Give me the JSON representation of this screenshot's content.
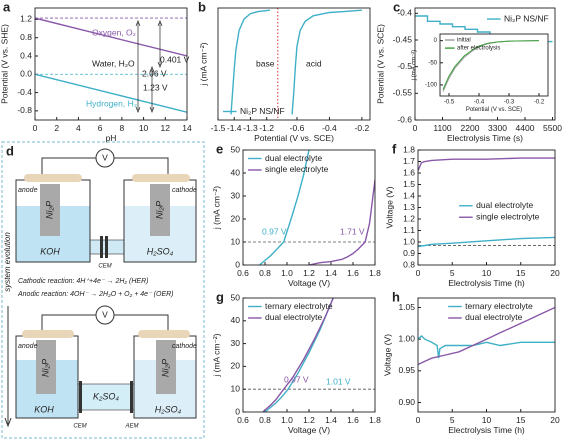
{
  "chart_data": [
    {
      "type": "line",
      "panel": "a",
      "xlabel": "pH",
      "ylabel": "Potential (V vs. SHE)",
      "xlim": [
        0,
        14
      ],
      "ylim": [
        -1.0,
        1.45
      ],
      "xticks": [
        0,
        2,
        4,
        6,
        8,
        10,
        12,
        14
      ],
      "yticks": [
        -0.8,
        -0.4,
        {
          "value": 0,
          "label": "0.0"
        },
        0.4,
        0.8,
        1.2
      ],
      "legend": null,
      "series": [
        {
          "name": "Oxygen, O₂",
          "color": "#8a58a8",
          "x": [
            0,
            14
          ],
          "values": [
            1.23,
            0.4
          ]
        },
        {
          "name": "Hydrogen, H₂",
          "color": "#3fb0c8",
          "x": [
            0,
            14
          ],
          "values": [
            0,
            -0.83
          ]
        }
      ],
      "ref_lines": [
        {
          "value": 1.23,
          "color": "#8a58a8"
        },
        {
          "value": 0,
          "color": "#3fb0c8"
        }
      ],
      "annotations": [
        "Water, H₂O",
        "2.06 V",
        "0.401 V",
        "1.23 V"
      ]
    },
    {
      "type": "line",
      "panel": "b",
      "xlabel": "Potential (V vs. SCE)",
      "ylabel": "j (mA cm⁻²)",
      "xlim": [
        -1.5,
        -0.15
      ],
      "x_break": [
        -1.15,
        -0.7
      ],
      "ylim": [
        -100,
        0
      ],
      "xticks": [
        -1.5,
        -1.4,
        -1.3,
        -1.2,
        -0.6,
        -0.4,
        -0.2
      ],
      "yticks": [],
      "legend": "lower-left",
      "series": [
        {
          "name": "Ni₂P NS/NF",
          "color": "#3fb0c8",
          "x": [
            -1.42,
            -1.41,
            -1.4,
            -1.39,
            -1.37,
            -1.34,
            -1.3,
            -1.25,
            -1.18,
            null,
            -0.63,
            -0.62,
            -0.61,
            -0.6,
            -0.58,
            -0.55,
            -0.5,
            -0.4,
            -0.3,
            -0.2
          ],
          "values": [
            -95,
            -75,
            -55,
            -38,
            -20,
            -10,
            -5,
            -3,
            -2,
            null,
            -95,
            -75,
            -52,
            -34,
            -20,
            -12,
            -7,
            -4,
            -3,
            -2
          ]
        }
      ],
      "ref_lines": [],
      "annotations": [
        "base",
        "acid"
      ]
    },
    {
      "type": "line",
      "panel": "c",
      "xlabel": "Electrolysis Time (s)",
      "ylabel": "Potential (V vs. SCE)",
      "xlim": [
        0,
        5600
      ],
      "ylim": [
        -0.6,
        -0.39
      ],
      "xticks": [
        0,
        1100,
        2200,
        3300,
        4400,
        5500
      ],
      "yticks": [
        -0.4,
        -0.45,
        -0.5,
        -0.55,
        -0.6
      ],
      "legend": "upper-right",
      "series": [
        {
          "name": "Ni₂P NS/NF",
          "color": "#3fb0c8",
          "x": [
            0,
            500,
            500,
            1000,
            1000,
            1500,
            1500,
            2000,
            2000,
            2500,
            2500,
            3000,
            3000,
            3500,
            3500,
            4000,
            4000,
            4500,
            4500,
            5000,
            5000,
            5500
          ],
          "values": [
            -0.405,
            -0.405,
            -0.415,
            -0.415,
            -0.42,
            -0.42,
            -0.425,
            -0.425,
            -0.43,
            -0.43,
            -0.435,
            -0.435,
            -0.44,
            -0.44,
            -0.443,
            -0.443,
            -0.446,
            -0.446,
            -0.45,
            -0.45,
            -0.453,
            -0.453
          ]
        }
      ],
      "ref_lines": [],
      "annotations": []
    },
    {
      "type": "line",
      "xlabel": "Potential (V vs. SCE)",
      "ylabel": "j (mA cm⁻²)",
      "xlim": [
        -0.53,
        -0.17
      ],
      "ylim": [
        -125,
        15
      ],
      "xticks": [
        -0.5,
        -0.4,
        -0.3,
        -0.2
      ],
      "yticks": [
        -100,
        -50,
        0
      ],
      "legend": "upper-left",
      "series": [
        {
          "name": "initial",
          "color": "#9a9a9a",
          "x": [
            -0.52,
            -0.5,
            -0.48,
            -0.45,
            -0.42,
            -0.4,
            -0.37,
            -0.34,
            -0.3,
            -0.25,
            -0.2
          ],
          "values": [
            -115,
            -85,
            -62,
            -38,
            -22,
            -14,
            -7,
            -3,
            -1,
            -0.5,
            0
          ]
        },
        {
          "name": "after electrolysis",
          "color": "#3ca03c",
          "x": [
            -0.52,
            -0.5,
            -0.48,
            -0.45,
            -0.42,
            -0.4,
            -0.37,
            -0.34,
            -0.3,
            -0.25,
            -0.2
          ],
          "values": [
            -110,
            -80,
            -58,
            -35,
            -20,
            -12,
            -6,
            -3,
            -1,
            -0.5,
            0
          ]
        }
      ],
      "ref_lines": [],
      "annotations": []
    },
    {
      "type": "line",
      "panel": "e",
      "xlabel": "Voltage (V)",
      "ylabel": "j (mA cm⁻²)",
      "xlim": [
        0.6,
        1.8
      ],
      "ylim": [
        0,
        50
      ],
      "xticks": [
        0.6,
        0.8,
        {
          "value": 1,
          "label": "1.0"
        },
        1.2,
        1.4,
        1.6,
        1.8
      ],
      "yticks": [
        0,
        10,
        20,
        30,
        40,
        50
      ],
      "legend": "upper-left",
      "series": [
        {
          "name": "dual electrolyte",
          "color": "#3fb0c8",
          "x": [
            0.75,
            0.8,
            0.85,
            0.9,
            0.97,
            1.05,
            1.1,
            1.15,
            1.2
          ],
          "values": [
            0,
            2,
            4,
            6.5,
            10,
            22,
            30,
            39,
            50
          ]
        },
        {
          "name": "single electrolyte",
          "color": "#8a58a8",
          "x": [
            1.2,
            1.3,
            1.4,
            1.5,
            1.55,
            1.6,
            1.65,
            1.71,
            1.75,
            1.8
          ],
          "values": [
            0,
            1,
            1.5,
            2.5,
            3.5,
            5,
            7,
            10,
            18,
            37
          ]
        }
      ],
      "ref_lines": [
        {
          "value": 10,
          "color": "#555555"
        }
      ],
      "annotations": [
        "0.97 V",
        "1.71 V"
      ]
    },
    {
      "type": "line",
      "panel": "f",
      "xlabel": "Electrolysis Time (h)",
      "ylabel": "Voltage (V)",
      "xlim": [
        0,
        20
      ],
      "ylim": [
        0.8,
        1.8
      ],
      "xticks": [
        0,
        5,
        10,
        15,
        20
      ],
      "yticks": [
        0.8,
        0.9,
        {
          "value": 1,
          "label": "1.0"
        },
        1.1,
        1.2,
        1.3,
        1.4,
        1.5,
        1.6,
        1.7,
        1.8
      ],
      "legend": "center-right",
      "series": [
        {
          "name": "dual electrolyte",
          "color": "#3fb0c8",
          "x": [
            0,
            0.5,
            1,
            2,
            5,
            10,
            15,
            20
          ],
          "values": [
            0.96,
            0.965,
            0.97,
            0.98,
            0.99,
            1.01,
            1.03,
            1.04
          ]
        },
        {
          "name": "single electrolyte",
          "color": "#8a58a8",
          "x": [
            0,
            0.5,
            1,
            2,
            5,
            10,
            15,
            20
          ],
          "values": [
            1.62,
            1.69,
            1.7,
            1.71,
            1.72,
            1.72,
            1.73,
            1.73
          ]
        }
      ],
      "ref_lines": [
        {
          "value": 0.97,
          "color": "#555555"
        }
      ],
      "annotations": []
    },
    {
      "type": "line",
      "panel": "g",
      "xlabel": "Voltage (V)",
      "ylabel": "j (mA cm⁻²)",
      "xlim": [
        0.6,
        1.8
      ],
      "ylim": [
        0,
        50
      ],
      "xticks": [
        0.6,
        0.8,
        {
          "value": 1,
          "label": "1.0"
        },
        1.2,
        1.4,
        1.6,
        1.8
      ],
      "yticks": [
        0,
        10,
        20,
        30,
        40,
        50
      ],
      "legend": "upper-left",
      "series": [
        {
          "name": "ternary electrolyte",
          "color": "#3fb0c8",
          "x": [
            0.8,
            0.85,
            0.9,
            0.95,
            1.01,
            1.1,
            1.2,
            1.3,
            1.42
          ],
          "values": [
            0,
            2,
            4,
            6.5,
            10,
            17,
            26,
            36,
            50
          ]
        },
        {
          "name": "dual electrolyte",
          "color": "#8a58a8",
          "x": [
            0.78,
            0.85,
            0.9,
            0.97,
            1.05,
            1.15,
            1.25,
            1.35,
            1.42
          ],
          "values": [
            0,
            3,
            5.5,
            10,
            15,
            23,
            32,
            42,
            50
          ]
        }
      ],
      "ref_lines": [
        {
          "value": 10,
          "color": "#555555"
        }
      ],
      "annotations": [
        "0.97 V",
        "1.01 V"
      ]
    },
    {
      "type": "line",
      "panel": "h",
      "xlabel": "Electrolysis Time (h)",
      "ylabel": "Voltage (V)",
      "xlim": [
        0,
        20
      ],
      "ylim": [
        0.885,
        1.065
      ],
      "xticks": [
        0,
        5,
        10,
        15,
        20
      ],
      "yticks": [
        {
          "value": 0.9,
          "label": "0.90"
        },
        0.95,
        {
          "value": 1,
          "label": "1.00"
        },
        1.05
      ],
      "legend": "upper-center",
      "series": [
        {
          "name": "ternary electrolyte",
          "color": "#3fb0c8",
          "x": [
            0,
            0.5,
            1,
            2,
            2.8,
            3,
            3.2,
            4,
            5,
            8,
            10,
            12,
            15,
            18,
            20
          ],
          "values": [
            1.0,
            1.005,
            1.0,
            0.995,
            0.99,
            0.97,
            0.985,
            0.99,
            0.99,
            0.99,
            0.995,
            0.99,
            0.995,
            0.995,
            0.995
          ]
        },
        {
          "name": "dual electrolyte",
          "color": "#8a58a8",
          "x": [
            0,
            1,
            2,
            4,
            6,
            8,
            10,
            12,
            14,
            16,
            18,
            20
          ],
          "values": [
            0.96,
            0.965,
            0.97,
            0.975,
            0.98,
            0.99,
            1.0,
            1.01,
            1.02,
            1.03,
            1.04,
            1.05
          ]
        }
      ],
      "ref_lines": [],
      "annotations": []
    }
  ],
  "diagram": {
    "panel": "d",
    "top_cell": {
      "meter": "V",
      "anode": "anode",
      "cathode": "cathode",
      "anode_electrode": "Ni₂P",
      "cathode_electrode": "Ni₂P",
      "left_electrolyte": "KOH",
      "right_electrolyte": "H₂SO₄",
      "membrane": "CEM"
    },
    "reactions": [
      "Cathodic reaction: 4H⁺+4e⁻ → 2H₂ (HER)",
      "Anodic reaction: 4OH⁻ → 2H₂O + O₂ + 4e⁻ (OER)"
    ],
    "evolution": "system evolution",
    "bottom_cell": {
      "meter": "V",
      "anode": "anode",
      "cathode": "cathode",
      "anode_electrode": "Ni₂P",
      "cathode_electrode": "Ni₂P",
      "left_electrolyte": "KOH",
      "middle_electrolyte": "K₂SO₄",
      "right_electrolyte": "H₂SO₄",
      "left_membrane": "CEM",
      "right_membrane": "AEM"
    }
  }
}
